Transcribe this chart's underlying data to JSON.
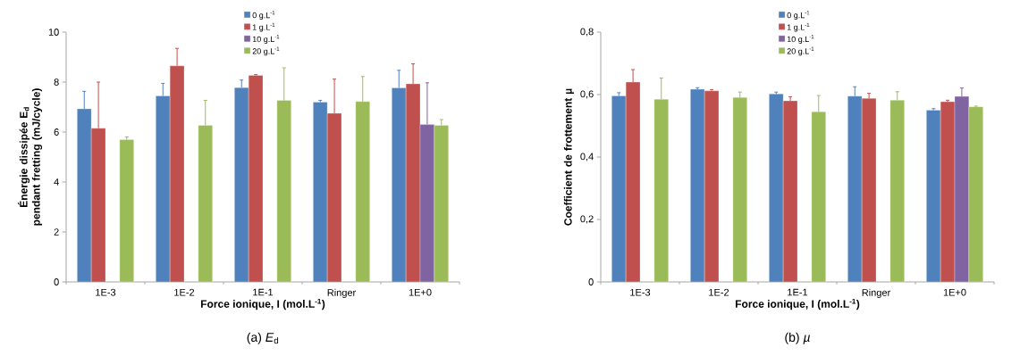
{
  "chart_data": [
    {
      "type": "bar",
      "categories": [
        "1E-3",
        "1E-2",
        "1E-1",
        "Ringer",
        "1E+0"
      ],
      "xlabel": "Force ionique, I (mol.L$^{-1}$)",
      "ylabel": "Énergie dissipée E$_{d}$ pendant fretting (mJ/cycle)",
      "ylim": [
        0,
        10
      ],
      "yticks": [
        0,
        2,
        4,
        6,
        8,
        10
      ],
      "legend": "top",
      "annotations": [
        "(a) *E*$_{d}$"
      ],
      "series": [
        {
          "name": "0 g.L$^{-1}$",
          "color": "#4f81bd",
          "values": [
            6.93,
            7.45,
            7.78,
            7.2,
            7.77
          ],
          "errors": [
            [
              6.93,
              7.63
            ],
            [
              7.45,
              7.95
            ],
            [
              7.78,
              8.08
            ],
            [
              7.2,
              7.27
            ],
            [
              7.77,
              8.47
            ]
          ]
        },
        {
          "name": "1 g.L$^{-1}$",
          "color": "#c0504d",
          "values": [
            6.15,
            8.65,
            8.27,
            6.75,
            7.93
          ],
          "errors": [
            [
              6.15,
              8.0
            ],
            [
              8.65,
              9.35
            ],
            [
              8.27,
              8.3
            ],
            [
              6.75,
              8.12
            ],
            [
              7.93,
              8.73
            ]
          ]
        },
        {
          "name": "10 g.L$^{-1}$",
          "color": "#8064a2",
          "values": [
            null,
            null,
            null,
            null,
            6.3
          ],
          "errors": [
            null,
            null,
            null,
            null,
            [
              6.3,
              7.97
            ]
          ]
        },
        {
          "name": "20 g.L$^{-1}$",
          "color": "#9bbb59",
          "values": [
            5.7,
            6.27,
            7.27,
            7.22,
            6.27
          ],
          "errors": [
            [
              5.7,
              5.8
            ],
            [
              6.27,
              7.27
            ],
            [
              7.27,
              8.57
            ],
            [
              7.22,
              8.22
            ],
            [
              6.27,
              6.5
            ]
          ]
        }
      ]
    },
    {
      "type": "bar",
      "categories": [
        "1E-3",
        "1E-2",
        "1E-1",
        "Ringer",
        "1E+0"
      ],
      "xlabel": "Force ionique, I (mol.L$^{-1}$)",
      "ylabel": "Coefficient de frottement µ",
      "ylim": [
        0,
        0.8
      ],
      "yticks": [
        0,
        {
          "value": 0.2,
          "label": "0,2"
        },
        {
          "value": 0.4,
          "label": "0,4"
        },
        {
          "value": 0.6,
          "label": "0,6"
        },
        {
          "value": 0.8,
          "label": "0,8"
        }
      ],
      "legend": "top",
      "annotations": [
        "(b) *µ*"
      ],
      "series": [
        {
          "name": "0 g.L$^{-1}$",
          "color": "#4f81bd",
          "values": [
            0.596,
            0.617,
            0.602,
            0.595,
            0.55
          ],
          "errors": [
            [
              0.596,
              0.606
            ],
            [
              0.617,
              0.622
            ],
            [
              0.602,
              0.608
            ],
            [
              0.595,
              0.625
            ],
            [
              0.55,
              0.555
            ]
          ]
        },
        {
          "name": "1 g.L$^{-1}$",
          "color": "#c0504d",
          "values": [
            0.64,
            0.612,
            0.58,
            0.588,
            0.577
          ],
          "errors": [
            [
              0.64,
              0.68
            ],
            [
              0.612,
              0.616
            ],
            [
              0.58,
              0.593
            ],
            [
              0.588,
              0.604
            ],
            [
              0.577,
              0.582
            ]
          ]
        },
        {
          "name": "10 g.L$^{-1}$",
          "color": "#8064a2",
          "values": [
            null,
            null,
            null,
            null,
            0.594
          ],
          "errors": [
            null,
            null,
            null,
            null,
            [
              0.594,
              0.621
            ]
          ]
        },
        {
          "name": "20 g.L$^{-1}$",
          "color": "#9bbb59",
          "values": [
            0.585,
            0.591,
            0.545,
            0.582,
            0.561
          ],
          "errors": [
            [
              0.585,
              0.653
            ],
            [
              0.591,
              0.608
            ],
            [
              0.545,
              0.597
            ],
            [
              0.582,
              0.609
            ],
            [
              0.561,
              0.563
            ]
          ]
        }
      ]
    }
  ]
}
